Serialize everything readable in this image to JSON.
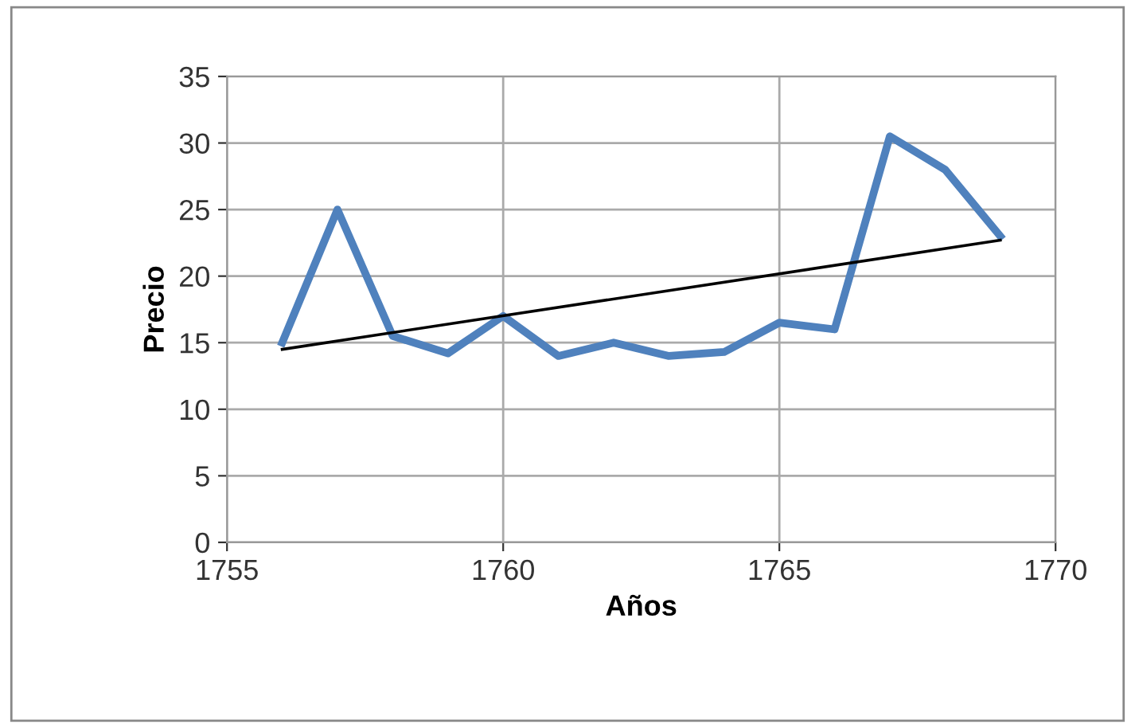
{
  "chart_data": {
    "type": "line",
    "xlabel": "Años",
    "ylabel": "Precio",
    "x": [
      1756,
      1757,
      1758,
      1759,
      1760,
      1761,
      1762,
      1763,
      1764,
      1765,
      1766,
      1767,
      1768,
      1769
    ],
    "series": [
      {
        "color": "#4f81bd",
        "values": [
          15,
          25,
          15.5,
          14.2,
          17,
          14,
          15,
          14,
          14.3,
          16.5,
          16,
          30.5,
          28,
          23
        ]
      },
      {
        "type": "line",
        "color": "#000000",
        "x": [
          1756,
          1769
        ],
        "values": [
          14.5,
          22.7
        ],
        "line_style": "solid"
      }
    ],
    "xlim": [
      1755,
      1770
    ],
    "xticks": [
      1755,
      1760,
      1765,
      1770
    ],
    "ylim": [
      0,
      35
    ],
    "yticks": [
      0,
      5,
      10,
      15,
      20,
      25,
      30,
      35
    ],
    "grid": true,
    "marker": "none",
    "line_style": "solid"
  }
}
